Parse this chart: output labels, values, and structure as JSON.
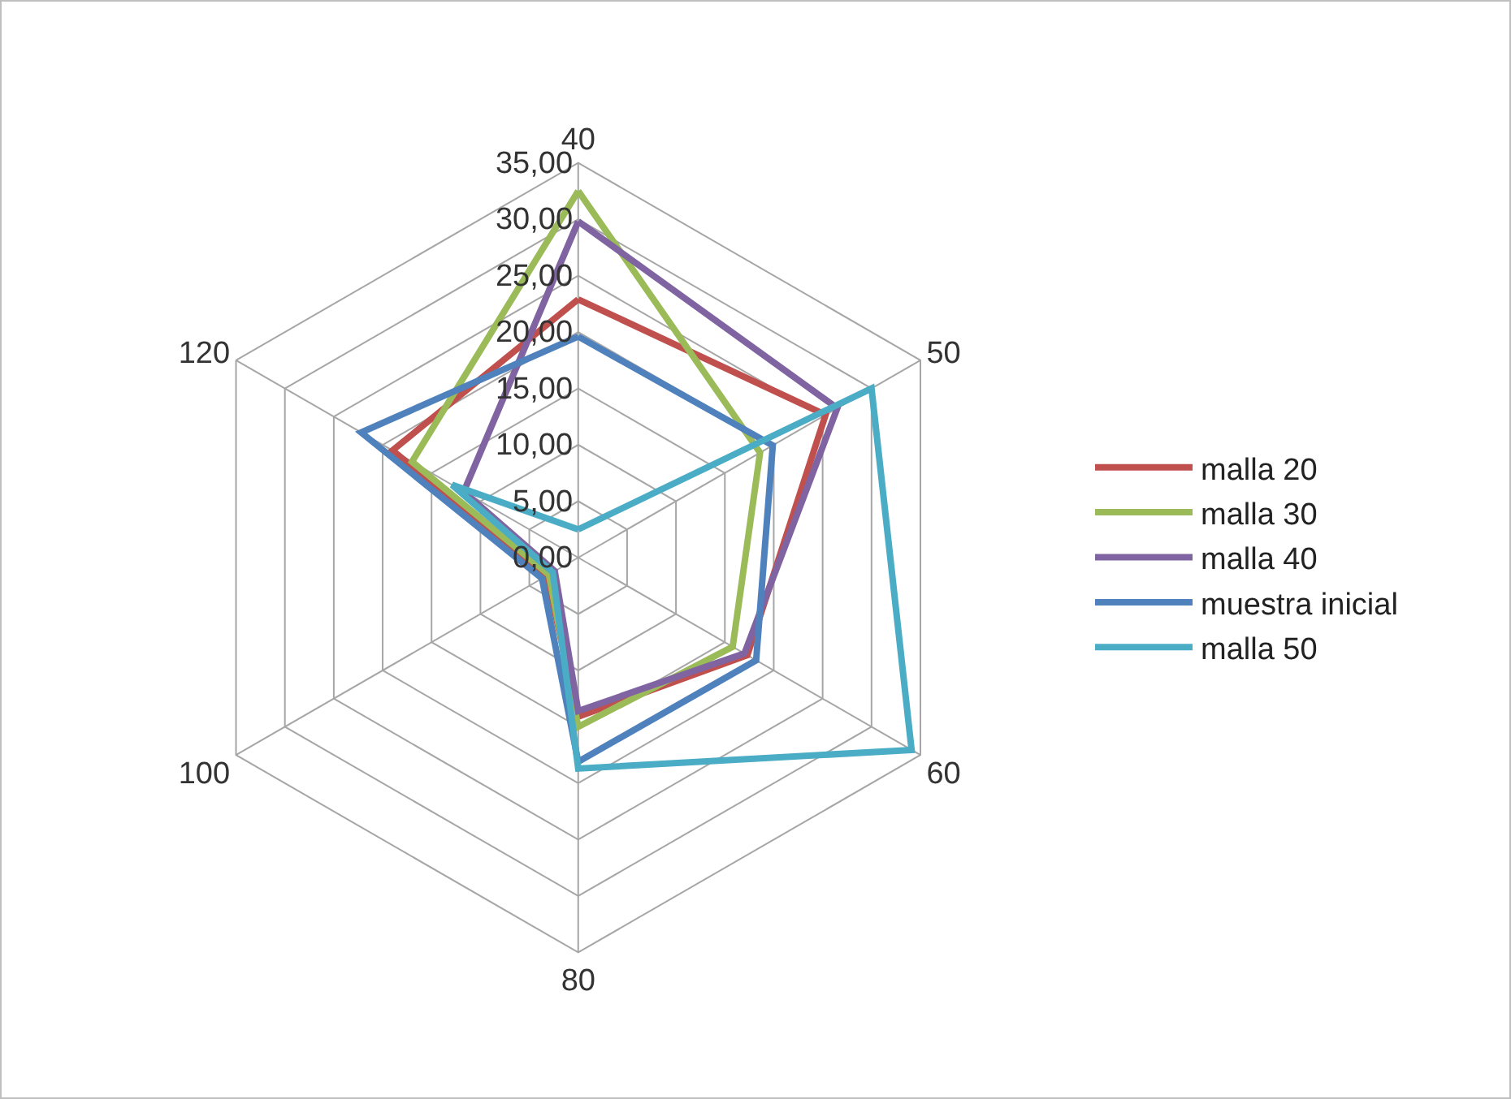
{
  "chart_data": {
    "type": "radar",
    "categories": [
      "40",
      "50",
      "60",
      "80",
      "100",
      "120"
    ],
    "series": [
      {
        "name": "malla 20",
        "color": "#c0504d",
        "values": [
          22.9,
          25.3,
          17.3,
          14.1,
          3.2,
          19.0
        ]
      },
      {
        "name": "malla 30",
        "color": "#9bbb59",
        "values": [
          32.5,
          18.6,
          15.8,
          15.0,
          3.0,
          17.0
        ]
      },
      {
        "name": "malla 40",
        "color": "#8064a2",
        "values": [
          29.8,
          26.5,
          17.0,
          13.6,
          2.4,
          11.7
        ]
      },
      {
        "name": "muestra inicial",
        "color": "#4f81bd",
        "values": [
          19.6,
          19.9,
          18.2,
          18.1,
          3.7,
          22.2
        ]
      },
      {
        "name": "malla 50",
        "color": "#4bacc6",
        "values": [
          2.5,
          30.0,
          34.1,
          18.7,
          2.6,
          12.9
        ]
      }
    ],
    "ylim": [
      0,
      35
    ],
    "yticks": [
      {
        "value": 0,
        "label": "0,00"
      },
      {
        "value": 5,
        "label": "5,00"
      },
      {
        "value": 10,
        "label": "10,00"
      },
      {
        "value": 15,
        "label": "15,00"
      },
      {
        "value": 20,
        "label": "20,00"
      },
      {
        "value": 25,
        "label": "25,00"
      },
      {
        "value": 30,
        "label": "30,00"
      },
      {
        "value": 35,
        "label": "35,00"
      }
    ],
    "grid": true,
    "legend": "right",
    "marker": "none",
    "line_style": "solid"
  }
}
